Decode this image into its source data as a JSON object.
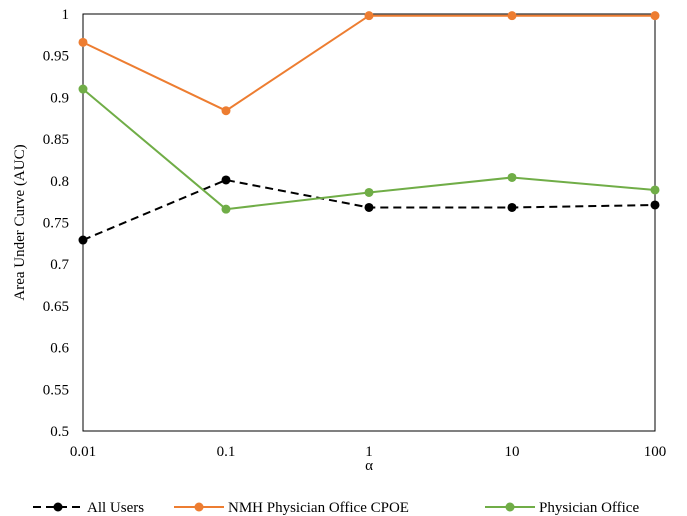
{
  "chart_data": {
    "type": "line",
    "xscale": "log",
    "x": [
      0.01,
      0.1,
      1,
      10,
      100
    ],
    "x_tick_labels": [
      "0.01",
      "0.1",
      "1",
      "10",
      "100"
    ],
    "xlabel": "α",
    "ylabel": "Area Under Curve (AUC)",
    "ylim": [
      0.5,
      1
    ],
    "y_ticks": [
      0.5,
      0.55,
      0.6,
      0.65,
      0.7,
      0.75,
      0.8,
      0.85,
      0.9,
      0.95,
      1
    ],
    "y_tick_labels": [
      "0.5",
      "0.55",
      "0.6",
      "0.65",
      "0.7",
      "0.75",
      "0.8",
      "0.85",
      "0.9",
      "0.95",
      "1"
    ],
    "grid": false,
    "legend_position": "bottom",
    "series": [
      {
        "name": "All Users",
        "values": [
          0.729,
          0.801,
          0.768,
          0.768,
          0.771
        ],
        "color": "#000000",
        "dash": "dashed"
      },
      {
        "name": "NMH Physician Office CPOE",
        "values": [
          0.966,
          0.884,
          0.998,
          0.998,
          0.998
        ],
        "color": "#ed7d31",
        "dash": "solid"
      },
      {
        "name": "Physician Office",
        "values": [
          0.91,
          0.766,
          0.786,
          0.804,
          0.789
        ],
        "color": "#70ad47",
        "dash": "solid"
      }
    ]
  }
}
